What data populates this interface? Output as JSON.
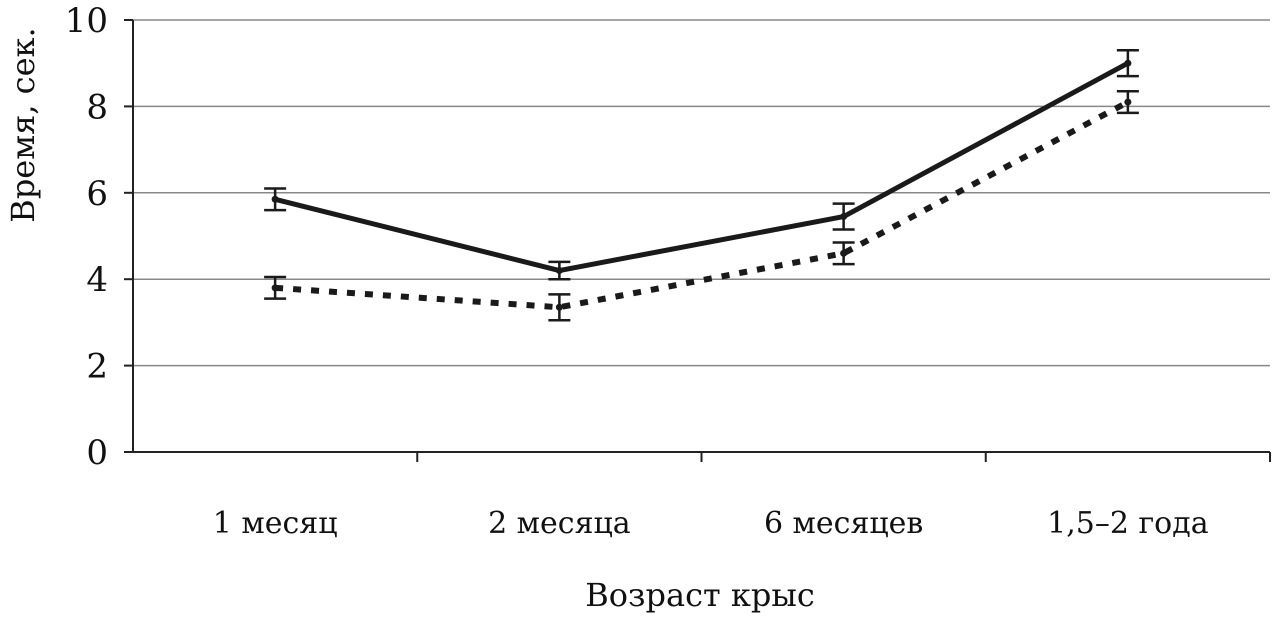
{
  "chart_data": {
    "type": "line",
    "title": "",
    "xlabel": "Возраст крыс",
    "ylabel": "Время, сек.",
    "categories": [
      "1 месяц",
      "2 месяца",
      "6 месяцев",
      "1,5–2 года"
    ],
    "ylim": [
      0,
      10
    ],
    "yticks": [
      "0",
      "2",
      "4",
      "6",
      "8",
      "10"
    ],
    "grid": true,
    "legend": "none",
    "series": [
      {
        "style": "solid",
        "color": "#1a1a1a",
        "values": [
          5.85,
          4.2,
          5.45,
          9.0
        ],
        "errors": [
          0.25,
          0.2,
          0.3,
          0.3
        ]
      },
      {
        "style": "dotted",
        "color": "#1a1a1a",
        "values": [
          3.8,
          3.35,
          4.6,
          8.1
        ],
        "errors": [
          0.25,
          0.3,
          0.25,
          0.25
        ]
      }
    ]
  }
}
